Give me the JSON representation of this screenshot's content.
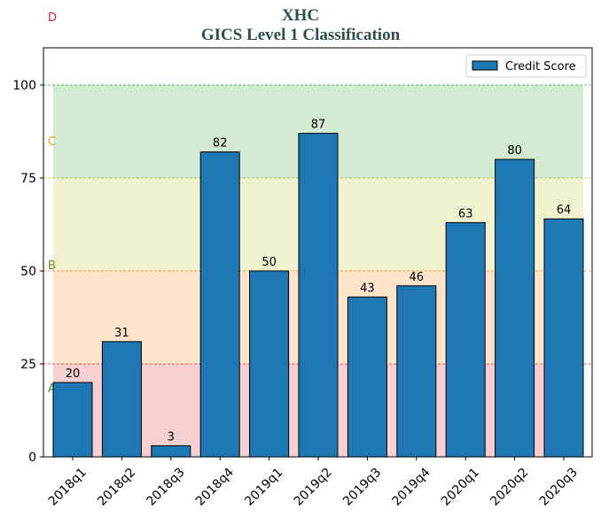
{
  "title": "XHC",
  "subtitle": "GICS Level 1 Classification",
  "chart_data": {
    "type": "bar",
    "title": "XHC",
    "subtitle": "GICS Level 1 Classification",
    "xlabel": "",
    "ylabel": "",
    "categories": [
      "2018q1",
      "2018q2",
      "2018q3",
      "2018q4",
      "2019q1",
      "2019q2",
      "2019q3",
      "2019q4",
      "2020q1",
      "2020q2",
      "2020q3"
    ],
    "series": [
      {
        "name": "Credit Score",
        "values": [
          20,
          31,
          3,
          82,
          50,
          87,
          43,
          46,
          63,
          80,
          64
        ],
        "color": "#1f77b4"
      }
    ],
    "ylim": [
      0,
      110
    ],
    "yticks": [
      0,
      25,
      50,
      75,
      100
    ],
    "legend": "top-right",
    "grid": false,
    "bands": [
      {
        "label": "A",
        "from": 0,
        "to": 25,
        "color": "#d62728",
        "label_color": "#2ca02c"
      },
      {
        "label": "B",
        "from": 25,
        "to": 50,
        "color": "#ff7f0e",
        "label_color": "#6b8e23"
      },
      {
        "label": "C",
        "from": 50,
        "to": 75,
        "color": "#bcbd22",
        "label_color": "#ff9900"
      },
      {
        "label": "D",
        "from": 75,
        "to": 100,
        "color": "#2ca02c",
        "label_color": "#d62728"
      }
    ]
  }
}
